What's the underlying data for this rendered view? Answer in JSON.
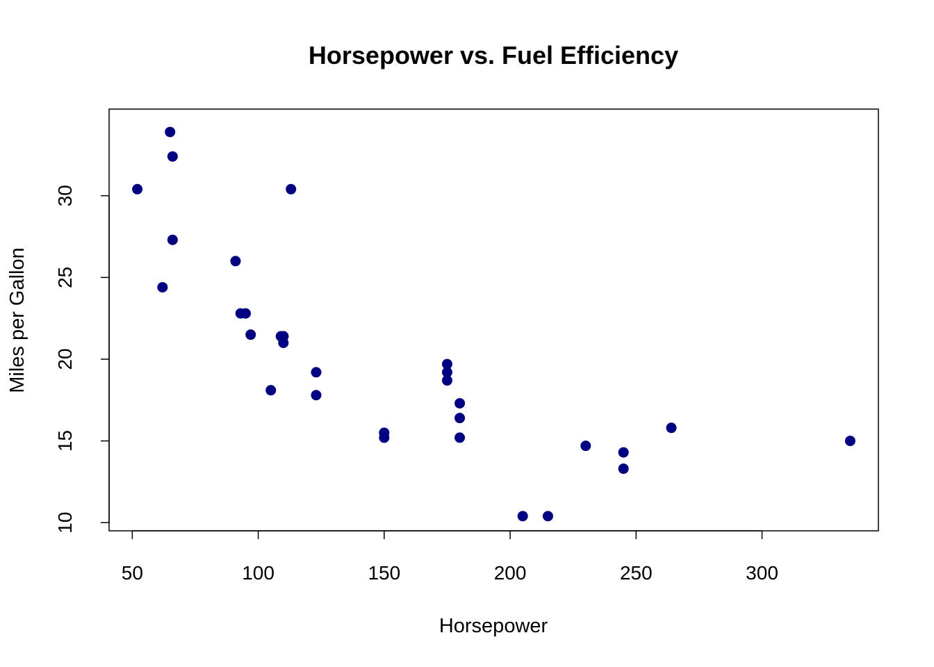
{
  "chart_data": {
    "type": "scatter",
    "title": "Horsepower vs. Fuel Efficiency",
    "xlabel": "Horsepower",
    "ylabel": "Miles per Gallon",
    "xlim": [
      40.8,
      346.2
    ],
    "ylim": [
      9.5,
      35.3
    ],
    "x_ticks": [
      50,
      100,
      150,
      200,
      250,
      300
    ],
    "y_ticks": [
      10,
      15,
      20,
      25,
      30
    ],
    "grid": false,
    "point_color": "#000080",
    "series": [
      {
        "x": [
          110,
          110,
          93,
          110,
          175,
          105,
          245,
          62,
          95,
          123,
          123,
          180,
          180,
          180,
          205,
          215,
          230,
          66,
          52,
          65,
          97,
          150,
          150,
          245,
          175,
          66,
          91,
          113,
          264,
          175,
          335,
          109
        ],
        "y": [
          21.0,
          21.4,
          22.8,
          21.4,
          18.7,
          18.1,
          14.3,
          24.4,
          22.8,
          19.2,
          17.8,
          16.4,
          17.3,
          15.2,
          10.4,
          10.4,
          14.7,
          32.4,
          30.4,
          33.9,
          21.5,
          15.5,
          15.2,
          13.3,
          19.2,
          27.3,
          26.0,
          30.4,
          15.8,
          19.7,
          15.0,
          21.4
        ]
      }
    ]
  }
}
